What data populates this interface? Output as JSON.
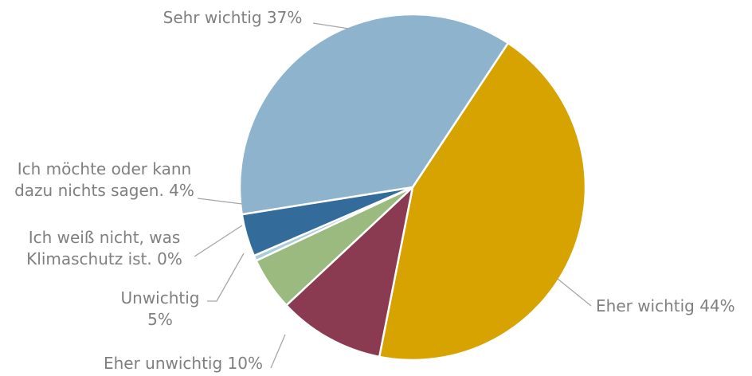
{
  "chart_data": {
    "type": "pie",
    "title": "",
    "legend": "none",
    "slices": [
      {
        "label": "Eher wichtig 44%",
        "value": 44,
        "color": "#d6a300"
      },
      {
        "label": "Eher unwichtig 10%",
        "value": 10,
        "color": "#8a3b52"
      },
      {
        "label": "Unwichtig 5%",
        "value": 5,
        "color": "#9aba7f"
      },
      {
        "label": "Ich weiß nicht, was Klimaschutz ist. 0%",
        "value": 0.5,
        "color": "#a9cdd9"
      },
      {
        "label": "Ich möchte oder kann dazu nichts sagen. 4%",
        "value": 4,
        "color": "#336b9b"
      },
      {
        "label": "Sehr wichtig 37%",
        "value": 37,
        "color": "#8db3cd"
      }
    ]
  }
}
